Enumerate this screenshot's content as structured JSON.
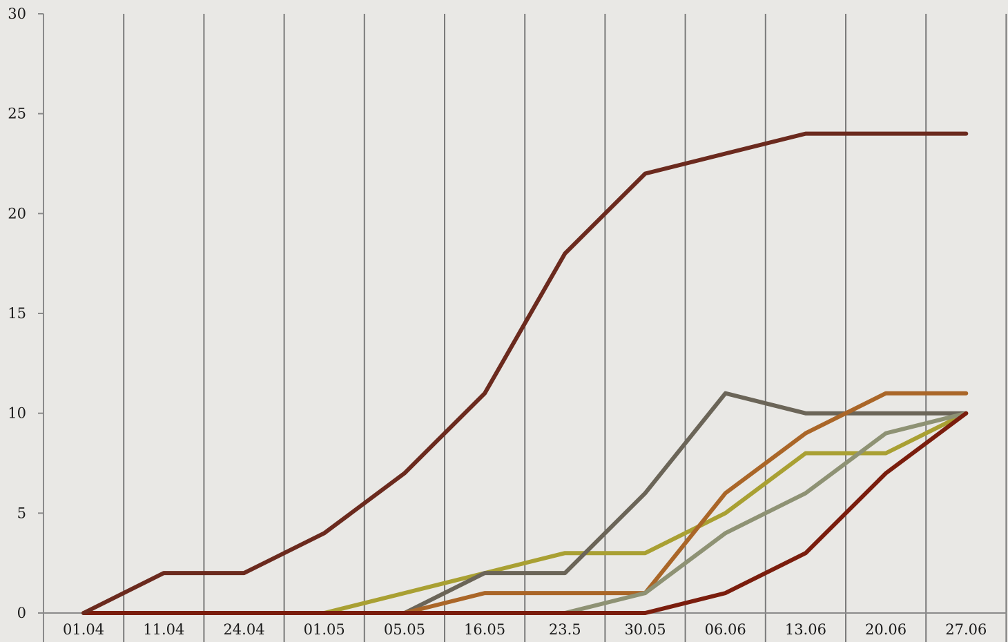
{
  "chart_data": {
    "type": "line",
    "title": "",
    "xlabel": "",
    "ylabel": "",
    "categories": [
      "01.04",
      "11.04",
      "24.04",
      "01.05",
      "05.05",
      "16.05",
      "23.5",
      "30.05",
      "06.06",
      "13.06",
      "20.06",
      "27.06"
    ],
    "ylim": [
      0,
      30
    ],
    "yticks": [
      0,
      5,
      10,
      15,
      20,
      25,
      30
    ],
    "grid": "vertical",
    "legend": "none",
    "series": [
      {
        "color": "#6b2a1e",
        "values": [
          0,
          2,
          2,
          4,
          7,
          11,
          18,
          22,
          23,
          24,
          24,
          24
        ]
      },
      {
        "color": "#a9a033",
        "values": [
          0,
          0,
          0,
          0,
          1,
          2,
          3,
          3,
          5,
          8,
          8,
          10
        ]
      },
      {
        "color": "#6b6558",
        "values": [
          0,
          0,
          0,
          0,
          0,
          2,
          2,
          6,
          11,
          10,
          10,
          10
        ]
      },
      {
        "color": "#aa6628",
        "values": [
          0,
          0,
          0,
          0,
          0,
          1,
          1,
          1,
          6,
          9,
          11,
          11
        ]
      },
      {
        "color": "#8e9274",
        "values": [
          0,
          0,
          0,
          0,
          0,
          0,
          0,
          1,
          4,
          6,
          9,
          10
        ]
      },
      {
        "color": "#7a1d0d",
        "values": [
          0,
          0,
          0,
          0,
          0,
          0,
          0,
          0,
          1,
          3,
          7,
          10
        ]
      }
    ]
  }
}
